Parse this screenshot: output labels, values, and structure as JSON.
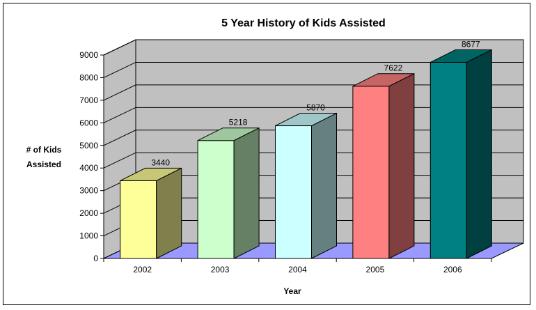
{
  "chart_data": {
    "type": "bar",
    "title": "5 Year History of Kids Assisted",
    "xlabel": "Year",
    "ylabel": "# of Kids Assisted",
    "ylabel_lines": [
      "# of Kids",
      "Assisted"
    ],
    "categories": [
      "2002",
      "2003",
      "2004",
      "2005",
      "2006"
    ],
    "values": [
      3440,
      5218,
      5870,
      7622,
      8677
    ],
    "data_labels": [
      "3440",
      "5218",
      "5870",
      "7622",
      "8677"
    ],
    "ylim": [
      0,
      9000
    ],
    "yticks": [
      0,
      1000,
      2000,
      3000,
      4000,
      5000,
      6000,
      7000,
      8000,
      9000
    ],
    "ytick_labels": [
      "0",
      "1000",
      "2000",
      "3000",
      "4000",
      "5000",
      "6000",
      "7000",
      "8000",
      "9000"
    ],
    "grid": true,
    "legend": "none",
    "style": "3d-column",
    "bar_colors": [
      "#ffff99",
      "#ccffcc",
      "#ccffff",
      "#ff8080",
      "#008080"
    ],
    "wall_color": "#c0c0c0",
    "floor_color": "#9999ff"
  }
}
